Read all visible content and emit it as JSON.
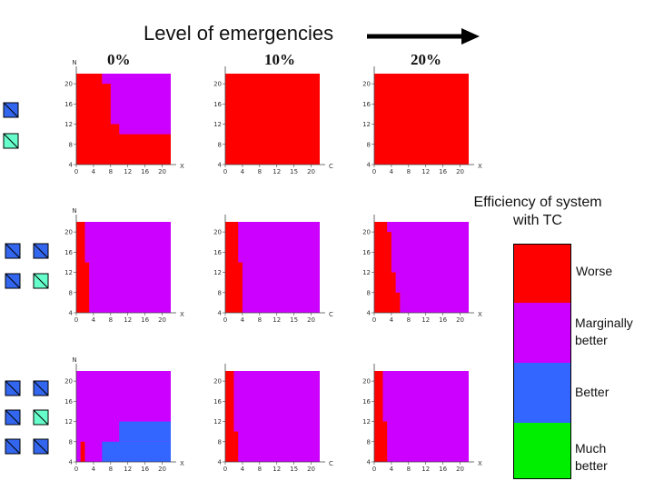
{
  "header": {
    "title": "Level of emergencies",
    "columns": [
      "0%",
      "10%",
      "20%"
    ]
  },
  "legend": {
    "title_line1": "Efficiency of system",
    "title_line2": "with TC",
    "items": [
      {
        "label": "Worse",
        "color": "#ff0000"
      },
      {
        "label_line1": "Marginally",
        "label_line2": "better",
        "color": "#cc00ff"
      },
      {
        "label": "Better",
        "color": "#3366ff"
      },
      {
        "label_line1": "Much",
        "label_line2": "better",
        "color": "#00ee00"
      }
    ]
  },
  "axes": {
    "y_letter": "N",
    "x_letters": [
      "X",
      "C",
      "X"
    ],
    "y_ticks": [
      "4",
      "8",
      "12",
      "16",
      "20"
    ],
    "x_ticks": [
      "0",
      "4",
      "8",
      "12",
      "16",
      "20"
    ],
    "x_ticks_mid": [
      "0",
      "4",
      "8",
      "12",
      "15",
      "20"
    ]
  },
  "colors": {
    "worse": "#ff0000",
    "marginal": "#cc00ff",
    "better": "#3366ff",
    "icon_blue": "#3366ee",
    "icon_cyan": "#66ffcc"
  },
  "chart_data": [
    {
      "type": "heatmap",
      "row": 1,
      "col": 1,
      "note": "red boundary staircase by N",
      "regions": [
        {
          "class": "worse",
          "boundary_x_by_N": [
            [
              4,
              22
            ],
            [
              8,
              22
            ],
            [
              10,
              10
            ],
            [
              12,
              8
            ],
            [
              16,
              8
            ],
            [
              20,
              6
            ],
            [
              22,
              6
            ]
          ]
        }
      ]
    },
    {
      "type": "heatmap",
      "row": 1,
      "col": 2,
      "regions": [
        {
          "class": "worse",
          "boundary_x_by_N": [
            [
              4,
              22
            ],
            [
              22,
              22
            ]
          ]
        }
      ]
    },
    {
      "type": "heatmap",
      "row": 1,
      "col": 3,
      "regions": [
        {
          "class": "worse",
          "boundary_x_by_N": [
            [
              4,
              22
            ],
            [
              22,
              22
            ]
          ]
        }
      ]
    },
    {
      "type": "heatmap",
      "row": 2,
      "col": 1,
      "regions": [
        {
          "class": "worse",
          "boundary_x_by_N": [
            [
              4,
              3
            ],
            [
              10,
              3
            ],
            [
              14,
              2
            ],
            [
              22,
              2
            ]
          ]
        }
      ]
    },
    {
      "type": "heatmap",
      "row": 2,
      "col": 2,
      "regions": [
        {
          "class": "worse",
          "boundary_x_by_N": [
            [
              4,
              4
            ],
            [
              10,
              4
            ],
            [
              14,
              3
            ],
            [
              18,
              3
            ],
            [
              22,
              2
            ]
          ]
        }
      ]
    },
    {
      "type": "heatmap",
      "row": 2,
      "col": 3,
      "regions": [
        {
          "class": "worse",
          "boundary_x_by_N": [
            [
              4,
              6
            ],
            [
              8,
              5
            ],
            [
              12,
              4
            ],
            [
              16,
              4
            ],
            [
              20,
              3
            ],
            [
              22,
              2
            ]
          ]
        }
      ]
    },
    {
      "type": "heatmap",
      "row": 3,
      "col": 1,
      "regions": [
        {
          "class": "worse",
          "x_range": [
            1,
            2
          ],
          "N_range": [
            4,
            8
          ]
        },
        {
          "class": "better",
          "x_range": [
            6,
            22
          ],
          "N_range": [
            4,
            8
          ]
        },
        {
          "class": "better",
          "x_range": [
            10,
            22
          ],
          "N_range": [
            8,
            12
          ]
        }
      ]
    },
    {
      "type": "heatmap",
      "row": 3,
      "col": 2,
      "regions": [
        {
          "class": "worse",
          "boundary_x_by_N": [
            [
              4,
              3
            ],
            [
              8,
              3
            ],
            [
              10,
              2
            ],
            [
              22,
              2
            ]
          ]
        }
      ]
    },
    {
      "type": "heatmap",
      "row": 3,
      "col": 3,
      "regions": [
        {
          "class": "worse",
          "boundary_x_by_N": [
            [
              4,
              3
            ],
            [
              8,
              3
            ],
            [
              12,
              2
            ],
            [
              22,
              2
            ]
          ]
        }
      ]
    }
  ]
}
